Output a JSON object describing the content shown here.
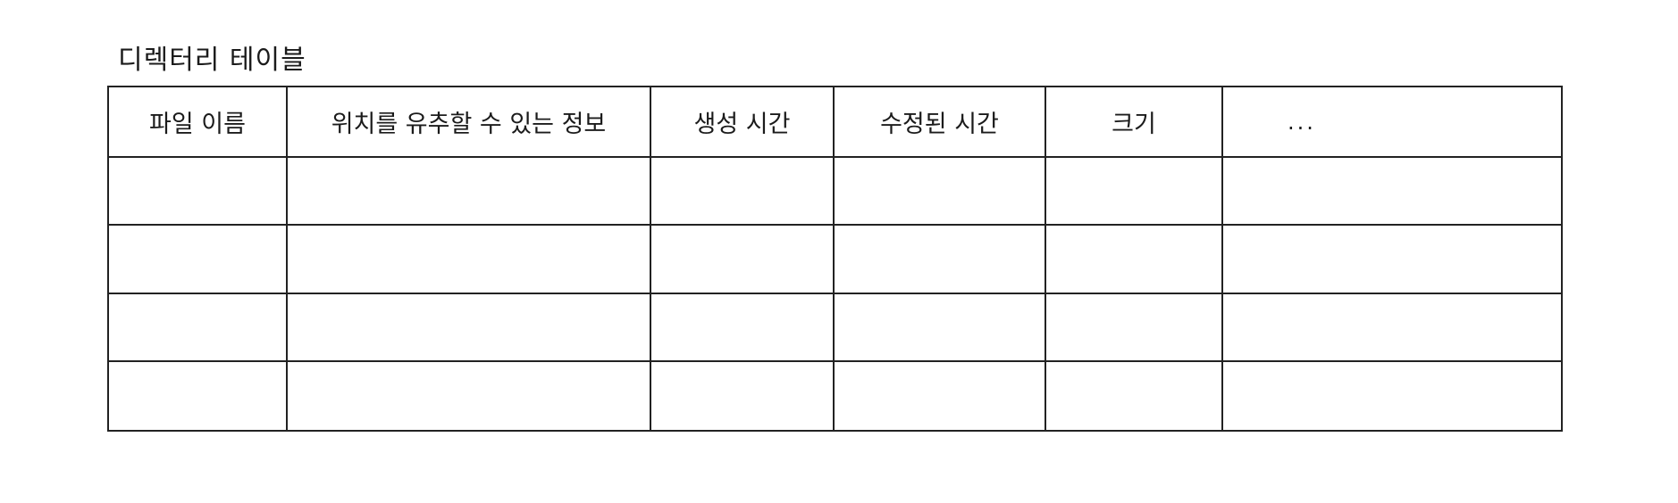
{
  "title": "디렉터리 테이블",
  "table": {
    "headers": [
      "파일 이름",
      "위치를 유추할 수 있는 정보",
      "생성 시간",
      "수정된 시간",
      "크기",
      "..."
    ],
    "rows": [
      [
        "",
        "",
        "",
        "",
        "",
        ""
      ],
      [
        "",
        "",
        "",
        "",
        "",
        ""
      ],
      [
        "",
        "",
        "",
        "",
        "",
        ""
      ],
      [
        "",
        "",
        "",
        "",
        "",
        ""
      ]
    ]
  }
}
